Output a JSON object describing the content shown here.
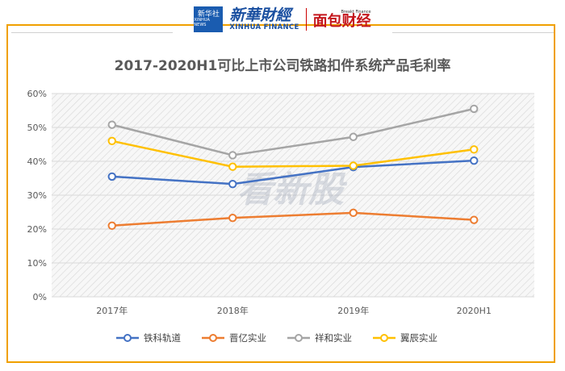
{
  "brand": {
    "xinhua_she": "新华社",
    "xinhua_news": "XINHUA NEWS",
    "finance_cn": "新華財經",
    "finance_en": "XINHUA FINANCE",
    "mg_tag": "Breakt Finance",
    "mg_name": "面包财经"
  },
  "watermark": "看新股",
  "chart_data": {
    "type": "line",
    "title": "2017-2020H1可比上市公司铁路扣件系统产品毛利率",
    "categories": [
      "2017年",
      "2018年",
      "2019年",
      "2020H1"
    ],
    "ylim": [
      0,
      60
    ],
    "yticks": [
      "0%",
      "10%",
      "20%",
      "30%",
      "40%",
      "50%",
      "60%"
    ],
    "grid": true,
    "legend_position": "bottom",
    "series": [
      {
        "name": "铁科轨道",
        "color": "#4472c4",
        "values": [
          35.5,
          33.3,
          38.3,
          40.2
        ]
      },
      {
        "name": "晋亿实业",
        "color": "#ed7d31",
        "values": [
          21.0,
          23.3,
          24.8,
          22.7
        ]
      },
      {
        "name": "祥和实业",
        "color": "#a5a5a5",
        "values": [
          50.8,
          41.8,
          47.2,
          55.5
        ]
      },
      {
        "name": "翼辰实业",
        "color": "#ffc000",
        "values": [
          46.0,
          38.4,
          38.7,
          43.5
        ]
      }
    ]
  }
}
